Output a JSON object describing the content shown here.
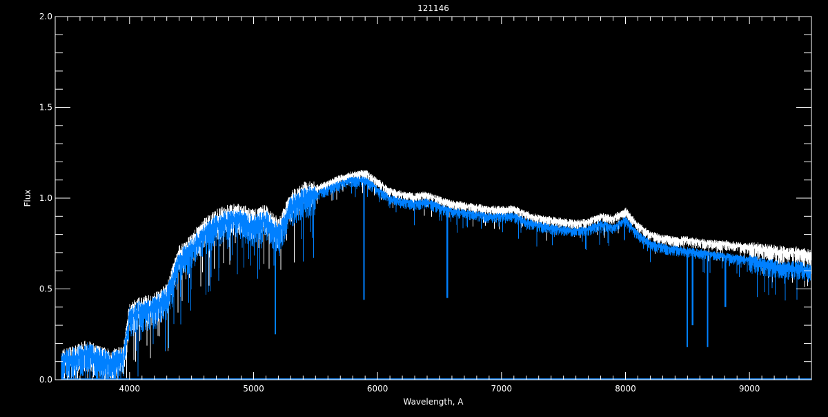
{
  "chart_data": {
    "type": "line",
    "title": "121146",
    "xlabel": "Wavelength, A",
    "ylabel": "Flux",
    "xlim": [
      3400,
      9500
    ],
    "ylim": [
      0.0,
      2.0
    ],
    "x_ticks": [
      4000,
      5000,
      6000,
      7000,
      8000,
      9000
    ],
    "x_tick_labels": [
      "4000",
      "5000",
      "6000",
      "7000",
      "8000",
      "9000"
    ],
    "y_ticks": [
      0.0,
      0.5,
      1.0,
      1.5,
      2.0
    ],
    "y_tick_labels": [
      "0.0",
      "0.5",
      "1.0",
      "1.5",
      "2.0"
    ],
    "grid": false,
    "background": "#000000",
    "series": [
      {
        "color": "#ffffff",
        "x": [
          3450,
          3550,
          3650,
          3750,
          3850,
          3950,
          4000,
          4100,
          4200,
          4300,
          4350,
          4400,
          4500,
          4600,
          4700,
          4800,
          4900,
          5000,
          5100,
          5200,
          5300,
          5400,
          5500,
          5600,
          5700,
          5800,
          5900,
          6000,
          6100,
          6200,
          6300,
          6400,
          6500,
          6600,
          6700,
          6800,
          6900,
          7000,
          7100,
          7200,
          7300,
          7400,
          7500,
          7600,
          7700,
          7800,
          7900,
          8000,
          8100,
          8200,
          8300,
          8400,
          8500,
          8600,
          8700,
          8800,
          8900,
          9000,
          9100,
          9200,
          9300,
          9400,
          9500
        ],
        "y": [
          0.11,
          0.13,
          0.16,
          0.13,
          0.11,
          0.13,
          0.37,
          0.4,
          0.42,
          0.47,
          0.58,
          0.68,
          0.75,
          0.83,
          0.88,
          0.91,
          0.91,
          0.88,
          0.91,
          0.83,
          0.98,
          1.03,
          1.05,
          1.08,
          1.11,
          1.13,
          1.14,
          1.09,
          1.04,
          1.02,
          1.01,
          1.02,
          0.99,
          0.97,
          0.96,
          0.95,
          0.94,
          0.94,
          0.94,
          0.91,
          0.89,
          0.88,
          0.87,
          0.86,
          0.87,
          0.9,
          0.89,
          0.93,
          0.85,
          0.8,
          0.78,
          0.77,
          0.77,
          0.76,
          0.75,
          0.75,
          0.74,
          0.73,
          0.72,
          0.71,
          0.7,
          0.7,
          0.68
        ]
      },
      {
        "color": "#0080ff",
        "x": [
          3450,
          3550,
          3650,
          3750,
          3850,
          3950,
          4000,
          4100,
          4200,
          4300,
          4350,
          4400,
          4500,
          4600,
          4700,
          4800,
          4900,
          5000,
          5100,
          5200,
          5300,
          5400,
          5500,
          5600,
          5700,
          5800,
          5900,
          6000,
          6100,
          6200,
          6300,
          6400,
          6500,
          6600,
          6700,
          6800,
          6900,
          7000,
          7100,
          7200,
          7300,
          7400,
          7500,
          7600,
          7700,
          7800,
          7900,
          8000,
          8100,
          8200,
          8300,
          8400,
          8500,
          8600,
          8700,
          8800,
          8900,
          9000,
          9100,
          9200,
          9300,
          9400,
          9500
        ],
        "y": [
          0.1,
          0.12,
          0.15,
          0.12,
          0.1,
          0.12,
          0.35,
          0.38,
          0.4,
          0.45,
          0.55,
          0.65,
          0.72,
          0.8,
          0.85,
          0.88,
          0.88,
          0.85,
          0.88,
          0.8,
          0.95,
          1.0,
          1.02,
          1.05,
          1.08,
          1.1,
          1.1,
          1.05,
          1.0,
          0.98,
          0.97,
          0.98,
          0.95,
          0.93,
          0.92,
          0.91,
          0.9,
          0.9,
          0.9,
          0.87,
          0.85,
          0.84,
          0.83,
          0.82,
          0.83,
          0.86,
          0.84,
          0.88,
          0.8,
          0.75,
          0.73,
          0.72,
          0.71,
          0.7,
          0.69,
          0.68,
          0.67,
          0.66,
          0.64,
          0.63,
          0.62,
          0.62,
          0.6
        ]
      }
    ],
    "absorption_lines": [
      {
        "x": 5175,
        "y": 0.25
      },
      {
        "x": 5890,
        "y": 0.44
      },
      {
        "x": 6563,
        "y": 0.45
      },
      {
        "x": 8498,
        "y": 0.18
      },
      {
        "x": 8542,
        "y": 0.3
      },
      {
        "x": 8662,
        "y": 0.18
      },
      {
        "x": 8805,
        "y": 0.4
      }
    ]
  }
}
